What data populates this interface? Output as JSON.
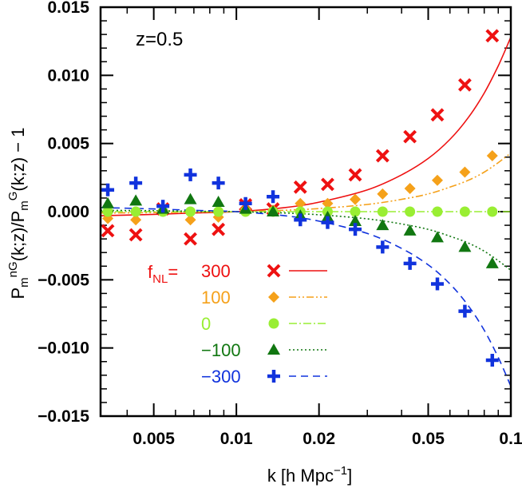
{
  "chart_data": {
    "type": "scatter",
    "annotation": "z=0.5",
    "xlabel": "k [h Mpc",
    "xlabel_sup": "−1",
    "xlabel_end": "]",
    "ylabel_parts": [
      "P",
      "m",
      "nG",
      "(k;z)/P",
      "m",
      "G",
      "(k;z) − 1"
    ],
    "x_scale": "log",
    "xlim": [
      0.0032,
      0.1
    ],
    "ylim": [
      -0.015,
      0.015
    ],
    "x_ticks": [
      {
        "value": 0.005,
        "label": "0.005"
      },
      {
        "value": 0.01,
        "label": "0.01"
      },
      {
        "value": 0.02,
        "label": "0.02"
      },
      {
        "value": 0.05,
        "label": "0.05"
      },
      {
        "value": 0.1,
        "label": "0.1"
      }
    ],
    "y_ticks": [
      {
        "value": 0.015,
        "label": "0.015"
      },
      {
        "value": 0.01,
        "label": "0.010"
      },
      {
        "value": 0.005,
        "label": "0.005"
      },
      {
        "value": 0.0,
        "label": "0.000"
      },
      {
        "value": -0.005,
        "label": "−0.005"
      },
      {
        "value": -0.01,
        "label": "−0.010"
      },
      {
        "value": -0.015,
        "label": "−0.015"
      }
    ],
    "legend_title": "f",
    "legend_title_sub": "NL",
    "legend_title_end": "=",
    "legend_placement": "lower-left",
    "x": [
      0.0034,
      0.0043,
      0.0054,
      0.0068,
      0.0086,
      0.0108,
      0.0136,
      0.0171,
      0.0215,
      0.0271,
      0.0341,
      0.0429,
      0.054,
      0.068,
      0.0856
    ],
    "series": [
      {
        "name": "300",
        "color": "#ee1111",
        "marker": "x",
        "line": "solid",
        "values": [
          -0.0014,
          -0.0017,
          0.0002,
          -0.002,
          -0.0013,
          0.0005,
          0.0002,
          0.0018,
          0.002,
          0.0027,
          0.0041,
          0.0055,
          0.0071,
          0.0093,
          0.0129
        ],
        "model": {
          "x": [
            0.0032,
            0.005,
            0.007,
            0.01,
            0.015,
            0.02,
            0.03,
            0.04,
            0.05,
            0.06,
            0.07,
            0.08,
            0.09,
            0.1
          ],
          "y": [
            -0.0003,
            -0.0002,
            -0.0001,
            0.0,
            0.0003,
            0.0007,
            0.0016,
            0.0027,
            0.0039,
            0.0053,
            0.0069,
            0.0087,
            0.0107,
            0.0128
          ]
        }
      },
      {
        "name": "100",
        "color": "#f5a11a",
        "marker": "diamond",
        "line": "dash-dot-dot",
        "values": [
          -0.0005,
          -0.0006,
          0.0001,
          -0.0006,
          -0.0004,
          0.0002,
          0.0001,
          0.0006,
          0.0006,
          0.0009,
          0.0013,
          0.0017,
          0.0023,
          0.0029,
          0.0041
        ],
        "model": {
          "x": [
            0.0032,
            0.005,
            0.007,
            0.01,
            0.015,
            0.02,
            0.03,
            0.04,
            0.05,
            0.06,
            0.07,
            0.08,
            0.09,
            0.1
          ],
          "y": [
            -0.0001,
            -7e-05,
            -3e-05,
            0.0,
            0.0001,
            0.00023,
            0.00053,
            0.0009,
            0.0013,
            0.0018,
            0.0023,
            0.0029,
            0.0036,
            0.0043
          ]
        }
      },
      {
        "name": "0",
        "color": "#99ee33",
        "marker": "circle",
        "line": "dash-dot",
        "values": [
          0.0,
          0.0,
          0.0,
          0.0,
          0.0,
          0.0,
          0.0,
          0.0,
          0.0,
          0.0,
          0.0,
          0.0,
          0.0,
          0.0,
          0.0
        ],
        "model": {
          "x": [
            0.0032,
            0.1
          ],
          "y": [
            0.0,
            0.0
          ]
        }
      },
      {
        "name": "−100",
        "color": "#117711",
        "marker": "triangle",
        "line": "dotted",
        "values": [
          0.0006,
          0.0008,
          0.0002,
          0.0009,
          0.0007,
          0.0002,
          0.0,
          -0.0003,
          -0.0004,
          -0.0007,
          -0.001,
          -0.0014,
          -0.0019,
          -0.0026,
          -0.0038
        ],
        "model": {
          "x": [
            0.0032,
            0.005,
            0.007,
            0.01,
            0.015,
            0.02,
            0.03,
            0.04,
            0.05,
            0.06,
            0.07,
            0.08,
            0.09,
            0.1
          ],
          "y": [
            0.0001,
            7e-05,
            3e-05,
            0.0,
            -0.0001,
            -0.00023,
            -0.00053,
            -0.0009,
            -0.0013,
            -0.0018,
            -0.0023,
            -0.0029,
            -0.0036,
            -0.0043
          ]
        }
      },
      {
        "name": "−300",
        "color": "#1133dd",
        "marker": "plus",
        "line": "dashed",
        "values": [
          0.0016,
          0.0021,
          0.0004,
          0.0027,
          0.0021,
          0.0006,
          0.0011,
          -0.0006,
          -0.0008,
          -0.0013,
          -0.0026,
          -0.0038,
          -0.0053,
          -0.0073,
          -0.0109
        ],
        "model": {
          "x": [
            0.0032,
            0.005,
            0.007,
            0.01,
            0.015,
            0.02,
            0.03,
            0.04,
            0.05,
            0.06,
            0.07,
            0.08,
            0.09,
            0.1
          ],
          "y": [
            0.0003,
            0.0002,
            0.0001,
            0.0,
            -0.0003,
            -0.0007,
            -0.0016,
            -0.0027,
            -0.0039,
            -0.0053,
            -0.0069,
            -0.0087,
            -0.0107,
            -0.0128
          ]
        }
      }
    ]
  }
}
